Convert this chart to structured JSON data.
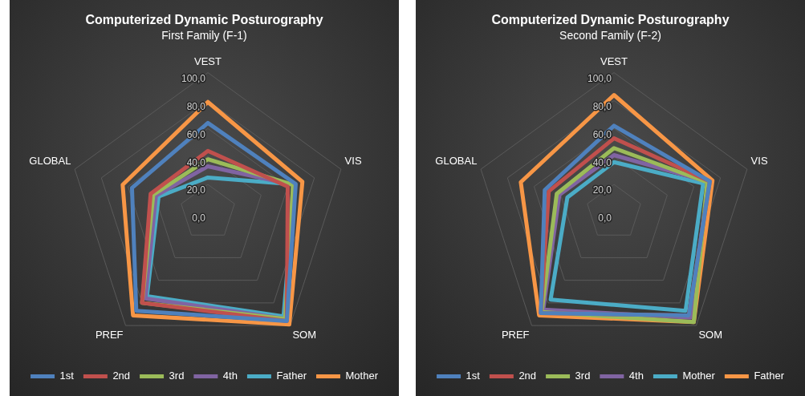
{
  "chart_data": [
    {
      "type": "radar",
      "title": "Computerized Dynamic Posturography",
      "subtitle": "First Family (F-1)",
      "categories": [
        "VEST",
        "VIS",
        "SOM",
        "PREF",
        "GLOBAL"
      ],
      "ylim": [
        0,
        100
      ],
      "yticks": [
        {
          "value": 0,
          "label": "0,0"
        },
        {
          "value": 20,
          "label": "20,0"
        },
        {
          "value": 40,
          "label": "40,0"
        },
        {
          "value": 60,
          "label": "60,0"
        },
        {
          "value": 80,
          "label": "80,0"
        },
        {
          "value": 100,
          "label": "100,0"
        }
      ],
      "grid": true,
      "legend": "bottom",
      "marker": "none",
      "series": [
        {
          "name": "1st",
          "color": "#4f81bd",
          "values": [
            64,
            66,
            96,
            87,
            57
          ]
        },
        {
          "name": "2nd",
          "color": "#c0504d",
          "values": [
            44,
            60,
            96,
            80,
            43
          ]
        },
        {
          "name": "3rd",
          "color": "#9bbb59",
          "values": [
            38,
            64,
            94,
            80,
            41
          ]
        },
        {
          "name": "4th",
          "color": "#8064a2",
          "values": [
            33,
            64,
            94,
            76,
            39
          ]
        },
        {
          "name": "Father",
          "color": "#4bacc6",
          "values": [
            25,
            65,
            92,
            74,
            37
          ]
        },
        {
          "name": "Mother",
          "color": "#f79646",
          "values": [
            79,
            71,
            99,
            91,
            64
          ]
        }
      ]
    },
    {
      "type": "radar",
      "title": "Computerized Dynamic Posturography",
      "subtitle": "Second Family (F-2)",
      "categories": [
        "VEST",
        "VIS",
        "SOM",
        "PREF",
        "GLOBAL"
      ],
      "ylim": [
        0,
        100
      ],
      "yticks": [
        {
          "value": 0,
          "label": "0,0"
        },
        {
          "value": 20,
          "label": "20,0"
        },
        {
          "value": 40,
          "label": "40,0"
        },
        {
          "value": 60,
          "label": "60,0"
        },
        {
          "value": 80,
          "label": "80,0"
        },
        {
          "value": 100,
          "label": "100,0"
        }
      ],
      "grid": true,
      "legend": "bottom",
      "marker": "none",
      "series": [
        {
          "name": "1st",
          "color": "#4f81bd",
          "values": [
            62,
            72,
            91,
            89,
            52
          ]
        },
        {
          "name": "2nd",
          "color": "#c0504d",
          "values": [
            53,
            72,
            91,
            89,
            49
          ]
        },
        {
          "name": "3rd",
          "color": "#9bbb59",
          "values": [
            46,
            70,
            97,
            88,
            43
          ]
        },
        {
          "name": "4th",
          "color": "#8064a2",
          "values": [
            41,
            71,
            93,
            86,
            41
          ]
        },
        {
          "name": "Mother",
          "color": "#4bacc6",
          "values": [
            36,
            67,
            87,
            77,
            35
          ]
        },
        {
          "name": "Father",
          "color": "#f79646",
          "values": [
            84,
            74,
            97,
            91,
            70
          ]
        }
      ]
    }
  ]
}
